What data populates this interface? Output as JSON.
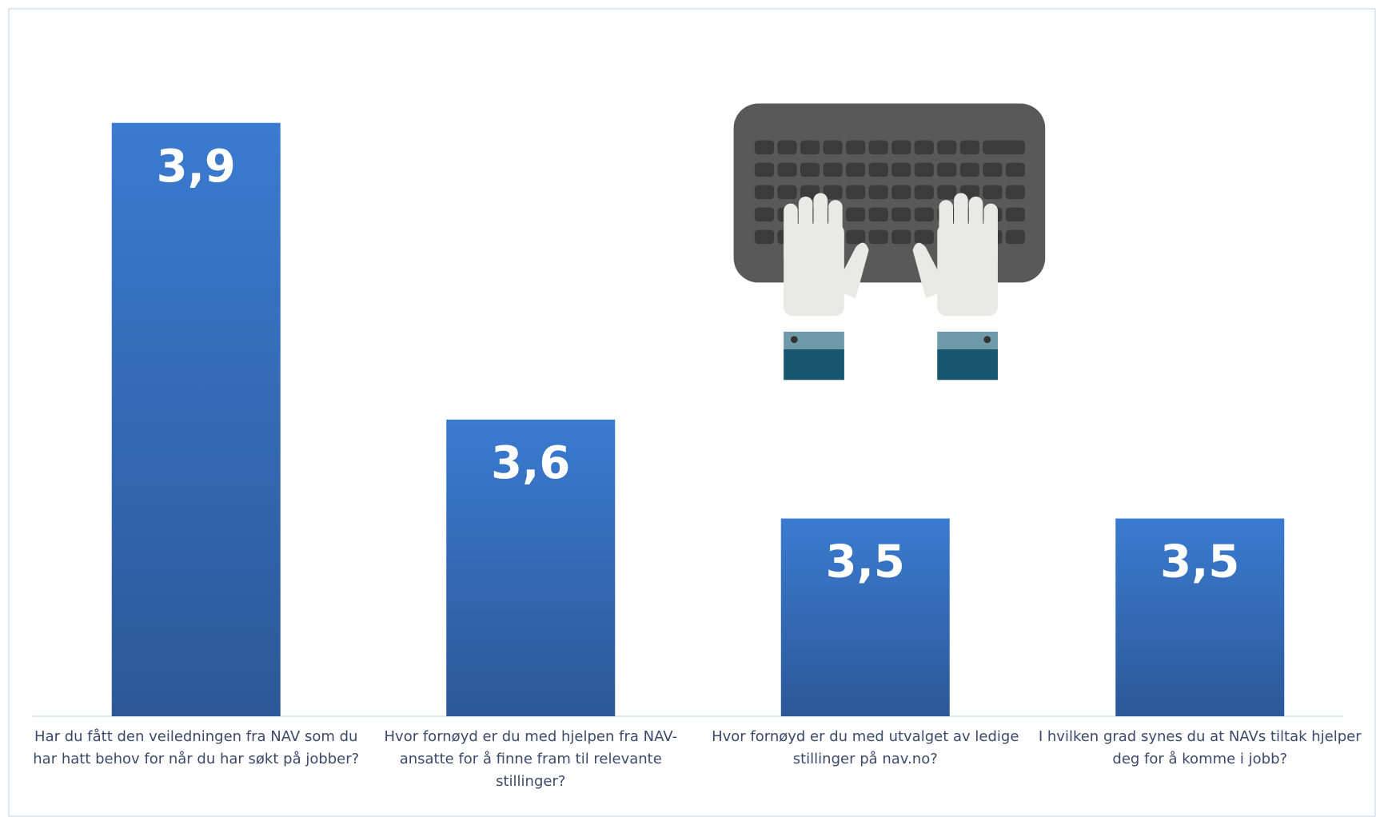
{
  "chart_data": {
    "type": "bar",
    "categories": [
      "Har du fått den veiledningen fra NAV som du har hatt behov for når du har søkt på jobber?",
      "Hvor fornøyd er du med hjelpen fra NAV-ansatte for å finne fram til relevante stillinger?",
      "Hvor fornøyd er du med utvalget av ledige stillinger på nav.no?",
      "I hvilken grad synes du at NAVs tiltak hjelper deg for å komme i jobb?"
    ],
    "values": [
      3.9,
      3.6,
      3.5,
      3.5
    ],
    "value_labels": [
      "3,9",
      "3,6",
      "3,5",
      "3,5"
    ],
    "color": "#3a7bd0",
    "ylim": [
      3.3,
      4.0
    ]
  }
}
